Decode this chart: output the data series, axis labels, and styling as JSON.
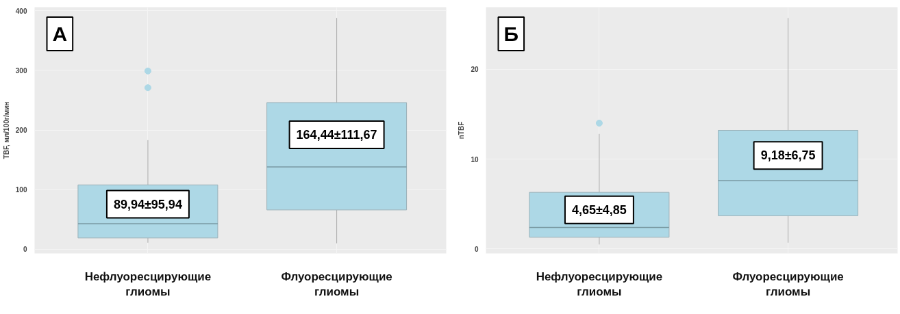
{
  "chart_data": [
    {
      "type": "box",
      "title": "А",
      "ylabel": "TBF, мл/100г/мин",
      "categories": [
        "Нефлуоресцирующие\nглиомы",
        "Флуоресцирующие\nглиомы"
      ],
      "color": "#add8e6",
      "ylim": [
        -7,
        406
      ],
      "yticks": [
        0,
        100,
        200,
        300,
        400
      ],
      "grid": true,
      "boxes": [
        {
          "low": 11,
          "q1": 19,
          "median": 43,
          "q3": 108,
          "high": 183,
          "outliers": [
            299,
            271
          ]
        },
        {
          "low": 10,
          "q1": 66,
          "median": 138,
          "q3": 246,
          "high": 388
        }
      ],
      "annotations": [
        "89,94±95,94",
        "164,44±111,67"
      ]
    },
    {
      "type": "box",
      "title": "Б",
      "ylabel": "nTBF",
      "categories": [
        "Нефлуоресцирующие\nглиомы",
        "Флуоресцирующие\nглиомы"
      ],
      "color": "#add8e6",
      "ylim": [
        -0.5,
        26.9
      ],
      "yticks": [
        0,
        10,
        20
      ],
      "grid": true,
      "boxes": [
        {
          "low": 0.5,
          "q1": 1.3,
          "median": 2.4,
          "q3": 6.3,
          "high": 12.8,
          "outliers": [
            14.0
          ]
        },
        {
          "low": 0.7,
          "q1": 3.7,
          "median": 7.6,
          "q3": 13.2,
          "high": 25.7
        }
      ],
      "annotations": [
        "4,65±4,85",
        "9,18±6,75"
      ]
    }
  ]
}
